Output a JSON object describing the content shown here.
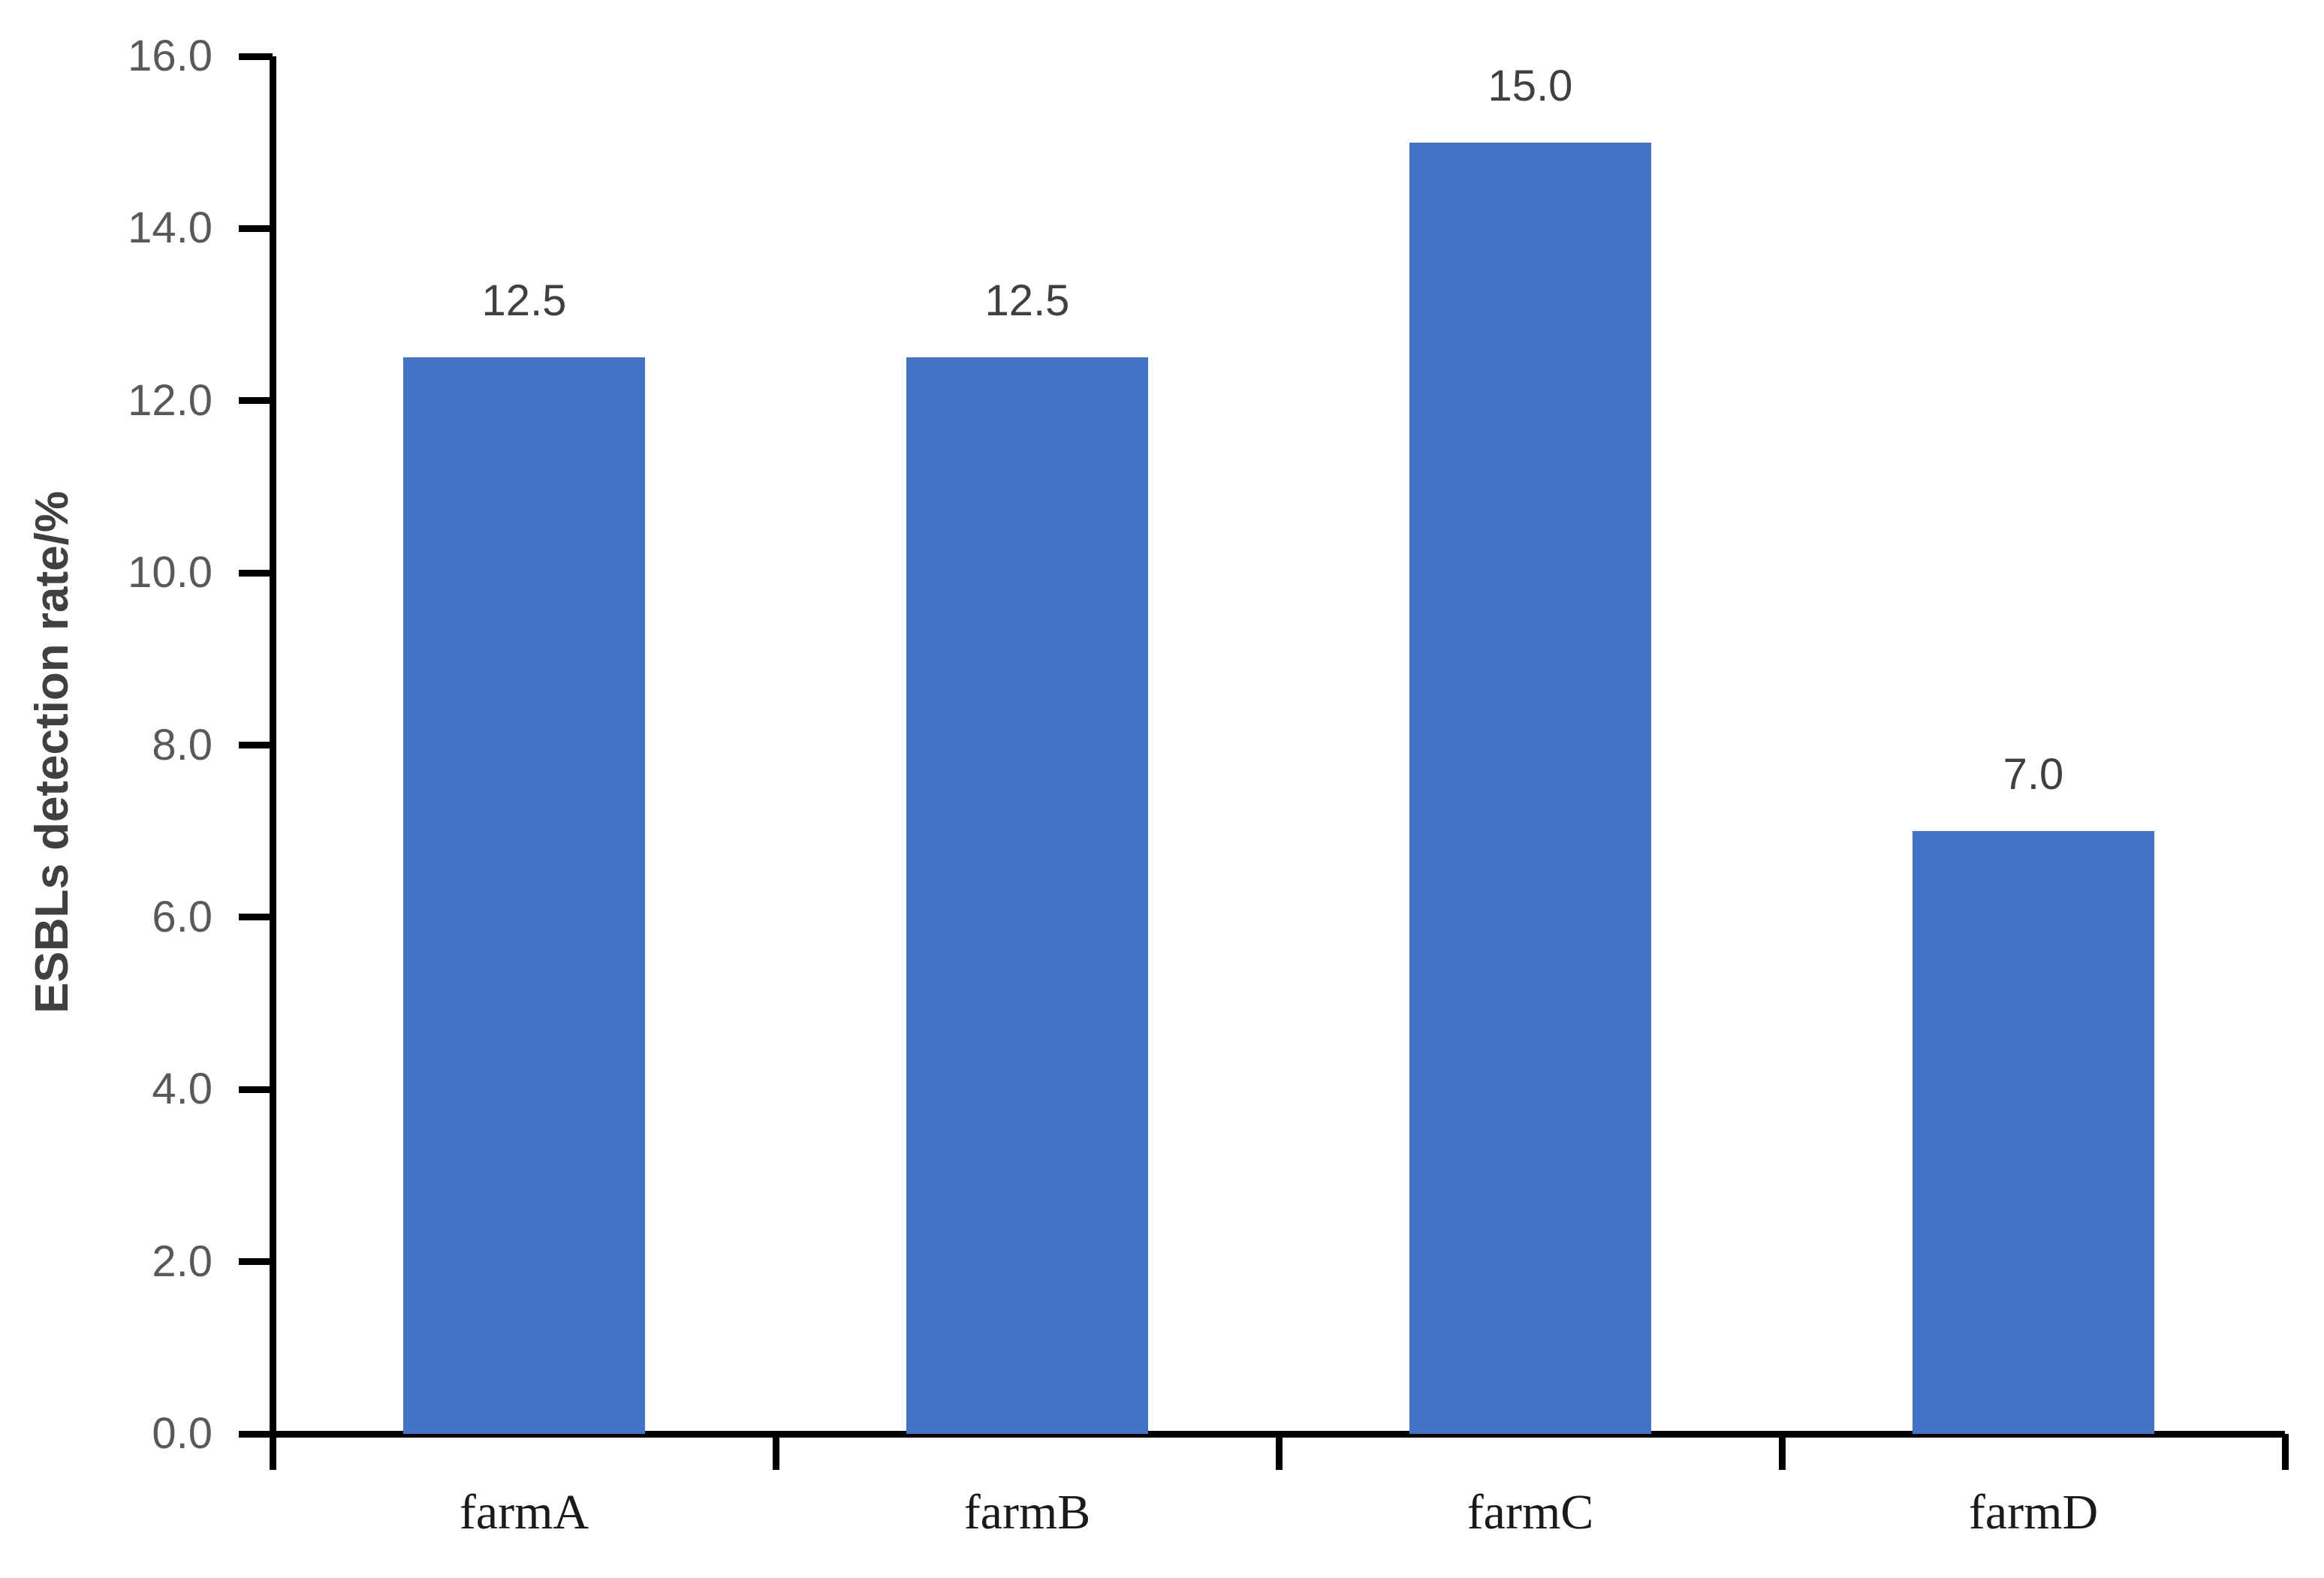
{
  "chart_data": {
    "type": "bar",
    "categories": [
      "farmA",
      "farmB",
      "farmC",
      "farmD"
    ],
    "values": [
      12.5,
      12.5,
      15.0,
      7.0
    ],
    "bar_labels": [
      "12.5",
      "12.5",
      "15.0",
      "7.0"
    ],
    "title": "",
    "xlabel": "",
    "ylabel": "ESBLs detection rate/%",
    "ylim": [
      0,
      16
    ],
    "yticks": [
      "0.0",
      "2.0",
      "4.0",
      "6.0",
      "8.0",
      "10.0",
      "12.0",
      "14.0",
      "16.0"
    ],
    "grid": false,
    "legend_position": "none",
    "bar_color": "#4472C4",
    "axis_color": "#000000",
    "ytick_label_color": "#595959",
    "bar_label_color": "#404040",
    "xtick_label_color": "#1a1a1a"
  }
}
